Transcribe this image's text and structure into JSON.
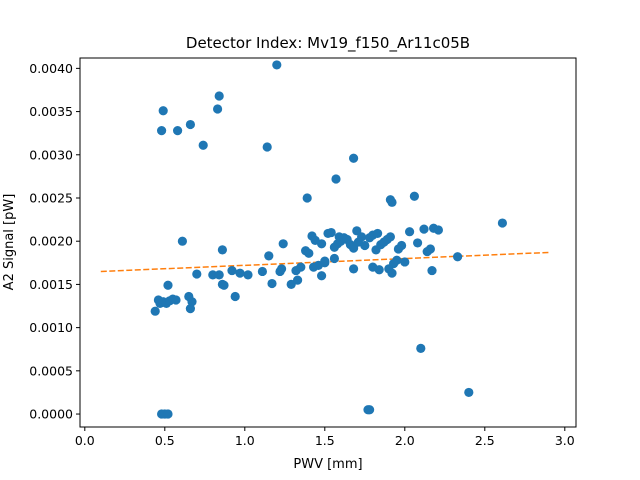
{
  "chart_data": {
    "type": "scatter",
    "title": "Detector Index: Mv19_f150_Ar11c05B",
    "xlabel": "PWV [mm]",
    "ylabel": "A2 Signal [pW]",
    "xlim": [
      -0.03,
      3.07
    ],
    "ylim": [
      -0.00015,
      0.00412
    ],
    "grid": false,
    "xticks": [
      0.0,
      0.5,
      1.0,
      1.5,
      2.0,
      2.5,
      3.0
    ],
    "xtick_labels": [
      "0.0",
      "0.5",
      "1.0",
      "1.5",
      "2.0",
      "2.5",
      "3.0"
    ],
    "yticks": [
      0.0,
      0.0005,
      0.001,
      0.0015,
      0.002,
      0.0025,
      0.003,
      0.0035,
      0.004
    ],
    "ytick_labels": [
      "0.0000",
      "0.0005",
      "0.0010",
      "0.0015",
      "0.0020",
      "0.0025",
      "0.0030",
      "0.0035",
      "0.0040"
    ],
    "colors": {
      "points": "#1f77b4",
      "fit": "#ff7f0e",
      "axes": "#000000",
      "background": "#ffffff"
    },
    "series": [
      {
        "name": "measurements",
        "kind": "scatter",
        "color": "#1f77b4",
        "points": [
          [
            0.44,
            0.00119
          ],
          [
            0.46,
            0.00132
          ],
          [
            0.47,
            0.00128
          ],
          [
            0.49,
            0.0013
          ],
          [
            0.51,
            0.00128
          ],
          [
            0.52,
            0.00149
          ],
          [
            0.53,
            0.00131
          ],
          [
            0.55,
            0.00133
          ],
          [
            0.57,
            0.00132
          ],
          [
            0.61,
            0.002
          ],
          [
            0.65,
            0.00136
          ],
          [
            0.67,
            0.0013
          ],
          [
            0.66,
            0.00122
          ],
          [
            0.7,
            0.00162
          ],
          [
            0.8,
            0.00161
          ],
          [
            0.84,
            0.00161
          ],
          [
            0.86,
            0.0019
          ],
          [
            0.86,
            0.0015
          ],
          [
            0.87,
            0.00149
          ],
          [
            0.92,
            0.00166
          ],
          [
            0.94,
            0.00136
          ],
          [
            0.97,
            0.00163
          ],
          [
            1.02,
            0.00161
          ],
          [
            1.11,
            0.00165
          ],
          [
            1.15,
            0.00183
          ],
          [
            1.17,
            0.00151
          ],
          [
            1.22,
            0.00165
          ],
          [
            1.24,
            0.00197
          ],
          [
            1.23,
            0.00168
          ],
          [
            1.29,
            0.0015
          ],
          [
            1.32,
            0.00166
          ],
          [
            1.33,
            0.00155
          ],
          [
            1.35,
            0.0017
          ],
          [
            1.38,
            0.00189
          ],
          [
            1.4,
            0.00186
          ],
          [
            1.42,
            0.00206
          ],
          [
            1.43,
            0.0017
          ],
          [
            1.46,
            0.00172
          ],
          [
            1.48,
            0.00197
          ],
          [
            1.48,
            0.0016
          ],
          [
            1.5,
            0.00175
          ],
          [
            1.52,
            0.00209
          ],
          [
            1.54,
            0.0021
          ],
          [
            1.56,
            0.0018
          ],
          [
            1.58,
            0.00197
          ],
          [
            1.59,
            0.00205
          ],
          [
            1.6,
            0.002
          ],
          [
            1.62,
            0.00204
          ],
          [
            1.64,
            0.00202
          ],
          [
            1.66,
            0.00196
          ],
          [
            1.68,
            0.00192
          ],
          [
            1.7,
            0.00212
          ],
          [
            1.71,
            0.00199
          ],
          [
            1.73,
            0.00205
          ],
          [
            1.75,
            0.00195
          ],
          [
            1.78,
            0.00204
          ],
          [
            1.8,
            0.00207
          ],
          [
            1.82,
            0.0019
          ],
          [
            1.83,
            0.00209
          ],
          [
            1.85,
            0.00196
          ],
          [
            1.87,
            0.00199
          ],
          [
            1.89,
            0.00202
          ],
          [
            1.91,
            0.00205
          ],
          [
            1.93,
            0.00174
          ],
          [
            1.96,
            0.00191
          ],
          [
            1.98,
            0.00195
          ],
          [
            1.9,
            0.00168
          ],
          [
            2.03,
            0.00211
          ],
          [
            2.08,
            0.00198
          ],
          [
            2.12,
            0.00214
          ],
          [
            2.14,
            0.00188
          ],
          [
            2.16,
            0.00191
          ],
          [
            2.18,
            0.00215
          ],
          [
            2.21,
            0.00213
          ],
          [
            2.33,
            0.00182
          ],
          [
            1.84,
            0.00167
          ],
          [
            1.92,
            0.00163
          ],
          [
            1.95,
            0.00178
          ],
          [
            2.0,
            0.00176
          ],
          [
            2.17,
            0.00166
          ],
          [
            1.68,
            0.00168
          ],
          [
            1.8,
            0.0017
          ],
          [
            1.5,
            0.00177
          ],
          [
            1.44,
            0.00201
          ],
          [
            1.56,
            0.00193
          ],
          [
            2.61,
            0.00221
          ],
          [
            2.06,
            0.00252
          ],
          [
            2.1,
            0.00076
          ],
          [
            2.4,
            0.00025
          ],
          [
            0.49,
            0.00351
          ],
          [
            0.48,
            0.00328
          ],
          [
            0.58,
            0.00328
          ],
          [
            0.66,
            0.00335
          ],
          [
            0.74,
            0.00311
          ],
          [
            0.83,
            0.00353
          ],
          [
            0.84,
            0.00368
          ],
          [
            1.14,
            0.00309
          ],
          [
            1.2,
            0.00404
          ],
          [
            1.39,
            0.0025
          ],
          [
            1.57,
            0.00272
          ],
          [
            1.68,
            0.00296
          ],
          [
            1.91,
            0.00248
          ],
          [
            1.92,
            0.00245
          ],
          [
            0.48,
            0.0
          ],
          [
            0.5,
            0.0
          ],
          [
            0.52,
            0.0
          ],
          [
            1.77,
            5e-05
          ],
          [
            1.78,
            5e-05
          ]
        ]
      },
      {
        "name": "linear fit",
        "kind": "line",
        "style": "dashed",
        "color": "#ff7f0e",
        "x": [
          0.1,
          2.9
        ],
        "y": [
          0.00165,
          0.00187
        ]
      }
    ]
  }
}
